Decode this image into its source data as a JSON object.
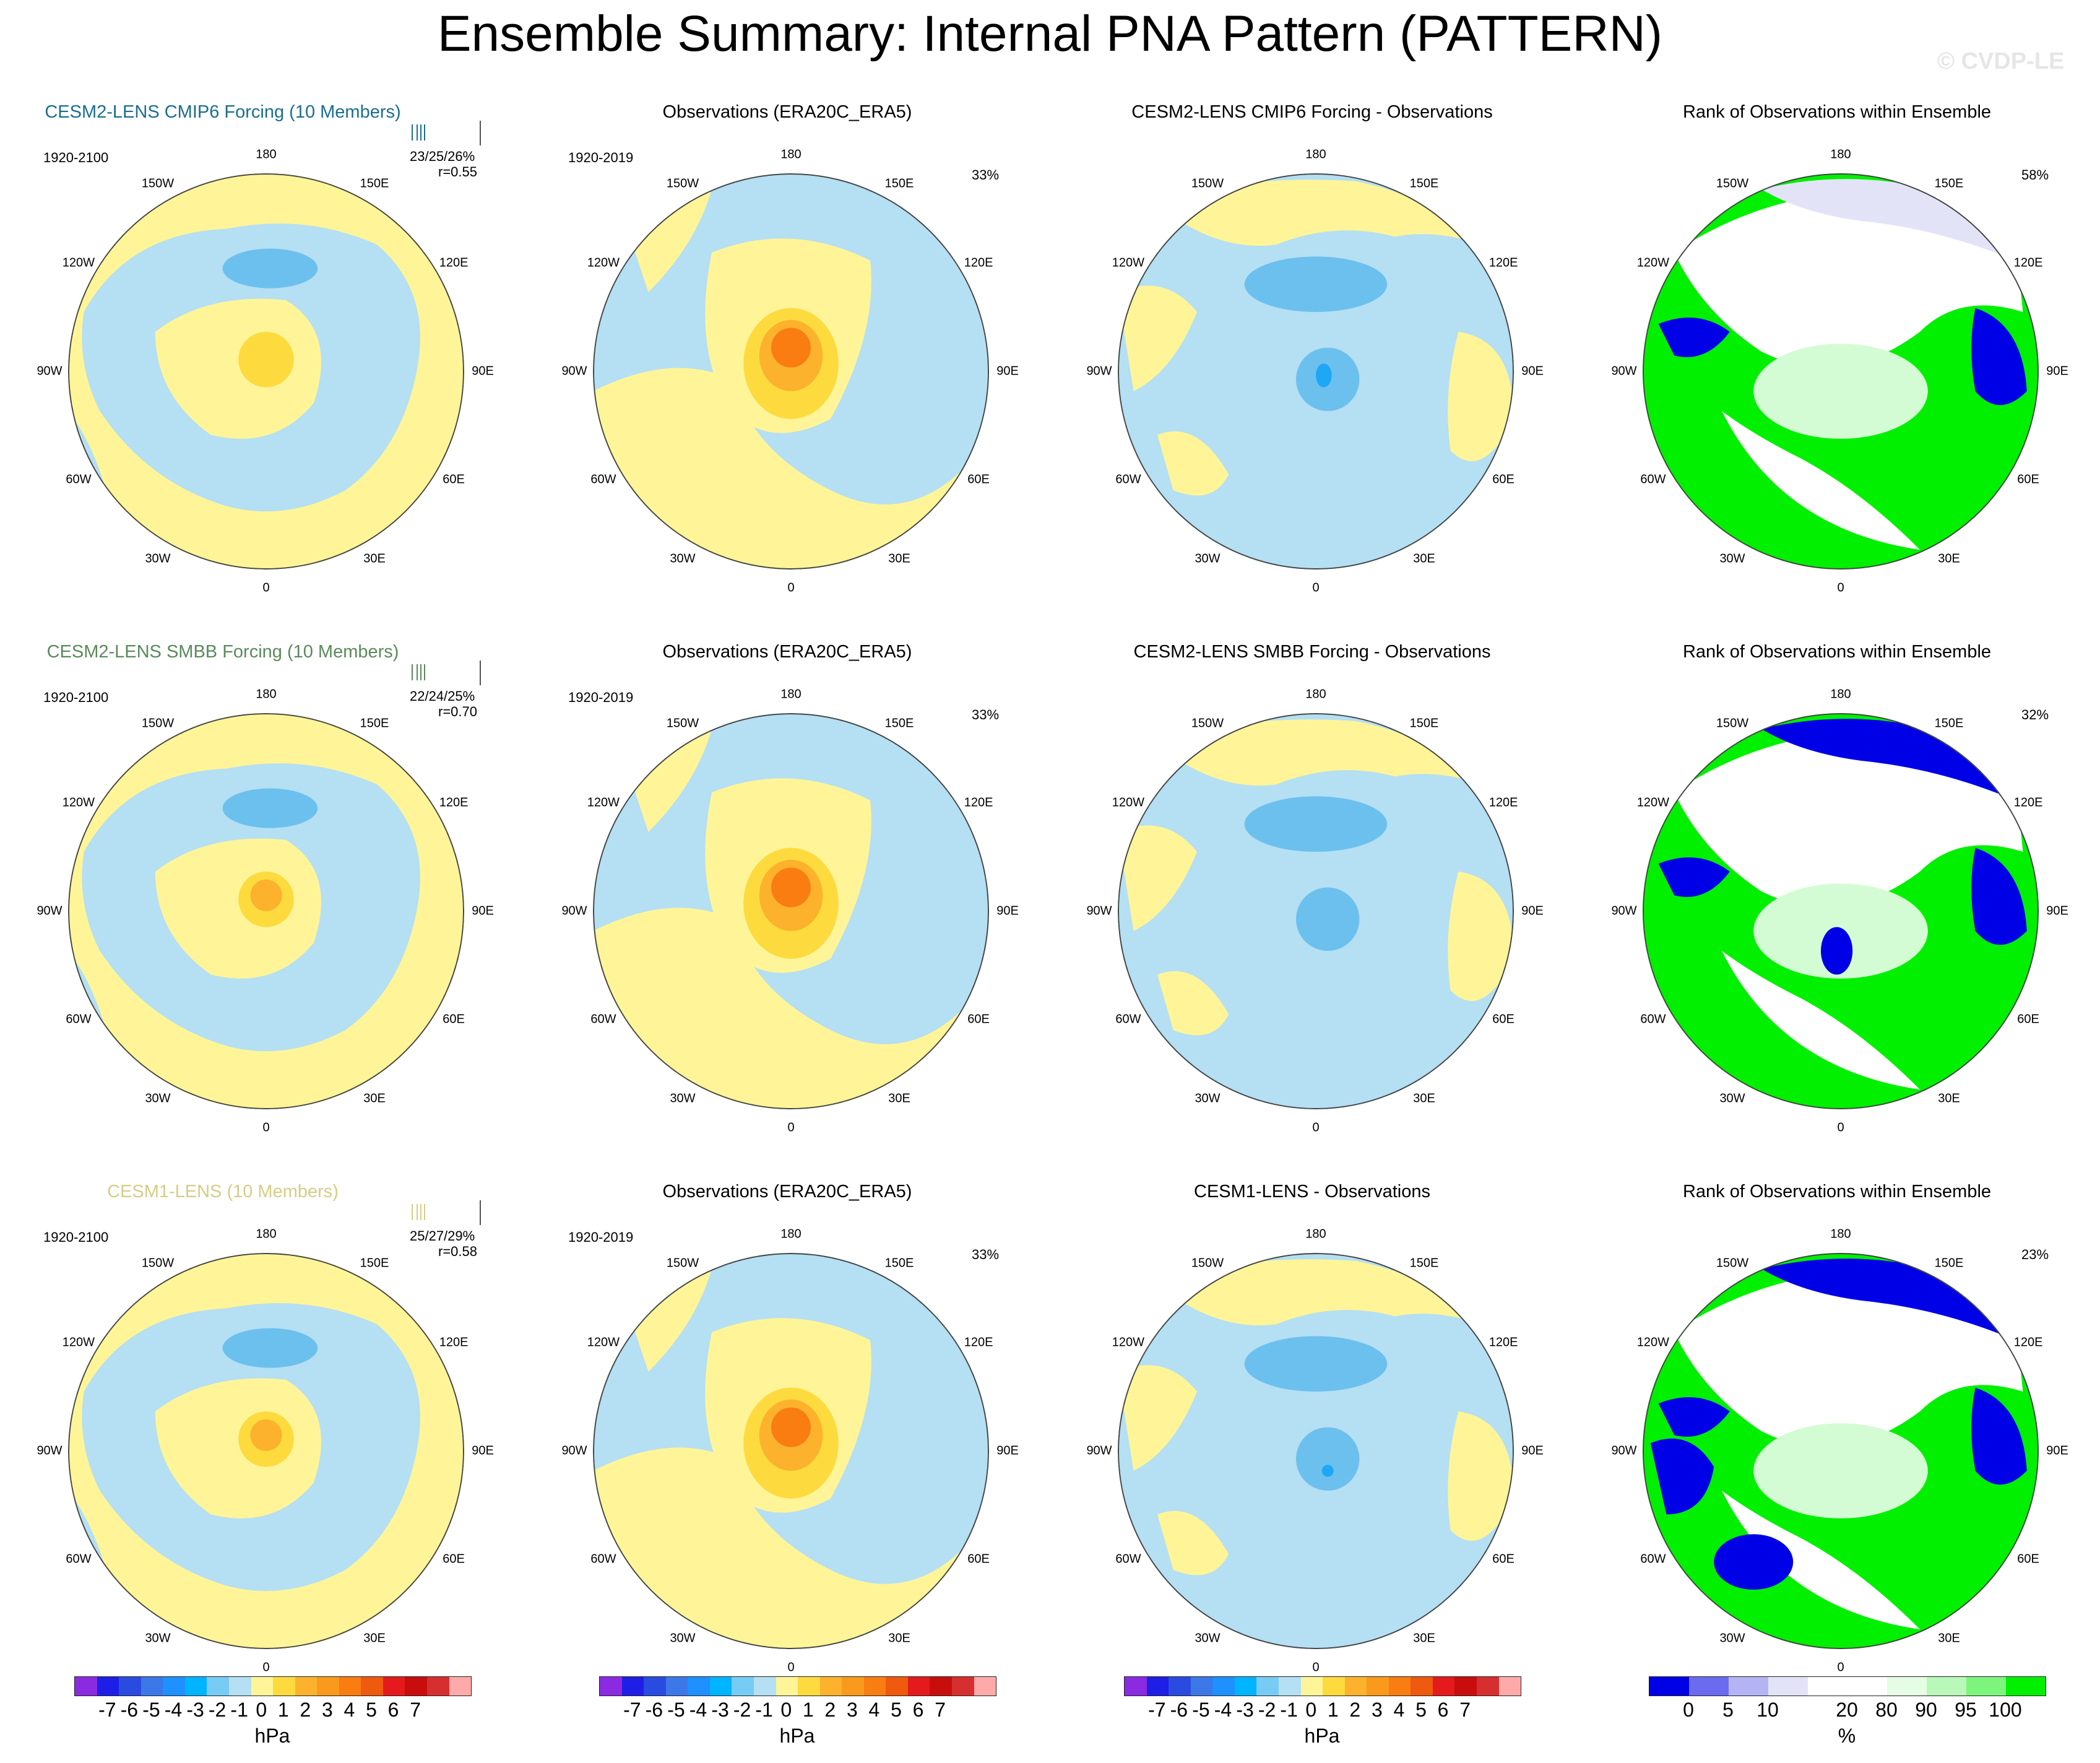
{
  "title": "Ensemble Summary: Internal PNA Pattern (PATTERN)",
  "watermark": "© CVDP-LE",
  "colors": {
    "yellow": "#fff598",
    "blue_light": "#b5dff2",
    "blue_mid": "#6cc0ee",
    "blue_dark": "#1ea7f5",
    "orange_light": "#fddb3e",
    "orange_mid": "#fcb22c",
    "orange_dark": "#f97d11",
    "green": "#00f000",
    "pale_green": "#d4fcd4",
    "rank_blue": "#0000e6",
    "lavender": "#e3e3f8",
    "model1_title": "#1a6e91",
    "model2_title": "#5a8a5c",
    "model3_title": "#d6cd85"
  },
  "lon_labels": {
    "top": "180",
    "bottom": "0",
    "left": [
      "150W",
      "120W",
      "90W",
      "60W",
      "30W"
    ],
    "right": [
      "150E",
      "120E",
      "90E",
      "60E",
      "30E"
    ]
  },
  "rows": [
    {
      "model_title": "CESM2-LENS CMIP6 Forcing (10 Members)",
      "model_period": "1920-2100",
      "model_pcts": "23/25/26%",
      "model_r": "r=0.55",
      "obs_title": "Observations (ERA20C_ERA5)",
      "obs_period": "1920-2019",
      "obs_pct": "33%",
      "diff_title": "CESM2-LENS CMIP6 Forcing - Observations",
      "rank_title": "Rank of Observations within Ensemble",
      "rank_pct": "58%"
    },
    {
      "model_title": "CESM2-LENS SMBB Forcing (10 Members)",
      "model_period": "1920-2100",
      "model_pcts": "22/24/25%",
      "model_r": "r=0.70",
      "obs_title": "Observations (ERA20C_ERA5)",
      "obs_period": "1920-2019",
      "obs_pct": "33%",
      "diff_title": "CESM2-LENS SMBB Forcing - Observations",
      "rank_title": "Rank of Observations within Ensemble",
      "rank_pct": "32%"
    },
    {
      "model_title": "CESM1-LENS (10 Members)",
      "model_period": "1920-2100",
      "model_pcts": "25/27/29%",
      "model_r": "r=0.58",
      "obs_title": "Observations (ERA20C_ERA5)",
      "obs_period": "1920-2019",
      "obs_pct": "33%",
      "diff_title": "CESM1-LENS - Observations",
      "rank_title": "Rank of Observations within Ensemble",
      "rank_pct": "23%"
    }
  ],
  "colorbar_hpa": {
    "colors": [
      "#8a2be2",
      "#1e1ee6",
      "#2a4be0",
      "#3c78e8",
      "#1e90ff",
      "#00b4ff",
      "#76ccf5",
      "#b5dff2",
      "#fff598",
      "#fddb3e",
      "#fcb22c",
      "#f99a1c",
      "#f97d11",
      "#ee5a0e",
      "#e41a1c",
      "#c80d0d",
      "#d62f2f",
      "#ffaaaa"
    ],
    "ticks": [
      "-7",
      "-6",
      "-5",
      "-4",
      "-3",
      "-2",
      "-1",
      "0",
      "1",
      "2",
      "3",
      "4",
      "5",
      "6",
      "7"
    ],
    "unit": "hPa"
  },
  "colorbar_rank": {
    "colors": [
      "#0000e6",
      "#6b6bf0",
      "#b4b4f5",
      "#e3e3f8",
      "#ffffff",
      "#ffffff",
      "#e4fde4",
      "#b9f8b9",
      "#7df57d",
      "#00f000"
    ],
    "ticks": [
      "0",
      "5",
      "10",
      "20",
      "80",
      "90",
      "95",
      "100"
    ],
    "unit": "%"
  }
}
